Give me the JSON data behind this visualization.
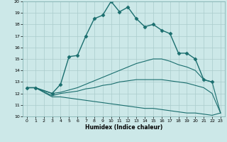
{
  "xlabel": "Humidex (Indice chaleur)",
  "bg_color": "#cce8e8",
  "grid_color": "#aacccc",
  "line_color": "#1a6e6e",
  "xlim": [
    -0.5,
    23.5
  ],
  "ylim": [
    10,
    20
  ],
  "xticks": [
    0,
    1,
    2,
    3,
    4,
    5,
    6,
    7,
    8,
    9,
    10,
    11,
    12,
    13,
    14,
    15,
    16,
    17,
    18,
    19,
    20,
    21,
    22,
    23
  ],
  "yticks": [
    10,
    11,
    12,
    13,
    14,
    15,
    16,
    17,
    18,
    19,
    20
  ],
  "series": [
    {
      "x": [
        0,
        1,
        3,
        4,
        5,
        6,
        7,
        8,
        9,
        10,
        11,
        12,
        13,
        14,
        15,
        16,
        17,
        18,
        19,
        20,
        21,
        22
      ],
      "y": [
        12.5,
        12.5,
        12.0,
        12.8,
        15.2,
        15.3,
        17.0,
        18.5,
        18.8,
        20.0,
        19.1,
        19.5,
        18.5,
        17.8,
        18.0,
        17.5,
        17.2,
        15.5,
        15.5,
        15.0,
        13.2,
        13.0
      ],
      "marker": "D",
      "markersize": 2.5,
      "linewidth": 1.0
    },
    {
      "x": [
        0,
        1,
        3,
        4,
        5,
        6,
        7,
        8,
        9,
        10,
        11,
        12,
        13,
        14,
        15,
        16,
        17,
        18,
        19,
        20,
        21,
        22,
        23
      ],
      "y": [
        12.5,
        12.5,
        12.0,
        12.1,
        12.3,
        12.5,
        12.8,
        13.1,
        13.4,
        13.7,
        14.0,
        14.3,
        14.6,
        14.8,
        15.0,
        15.0,
        14.8,
        14.5,
        14.3,
        14.0,
        13.2,
        13.0,
        10.3
      ],
      "marker": null,
      "markersize": 0,
      "linewidth": 0.8
    },
    {
      "x": [
        0,
        1,
        3,
        4,
        5,
        6,
        7,
        8,
        9,
        10,
        11,
        12,
        13,
        14,
        15,
        16,
        17,
        18,
        19,
        20,
        21,
        22,
        23
      ],
      "y": [
        12.5,
        12.5,
        11.8,
        12.0,
        12.1,
        12.2,
        12.4,
        12.5,
        12.7,
        12.8,
        13.0,
        13.1,
        13.2,
        13.2,
        13.2,
        13.2,
        13.1,
        13.0,
        12.9,
        12.7,
        12.5,
        12.0,
        10.3
      ],
      "marker": null,
      "markersize": 0,
      "linewidth": 0.8
    },
    {
      "x": [
        0,
        1,
        3,
        4,
        5,
        6,
        7,
        8,
        9,
        10,
        11,
        12,
        13,
        14,
        15,
        16,
        17,
        18,
        19,
        20,
        21,
        22,
        23
      ],
      "y": [
        12.5,
        12.5,
        11.7,
        11.7,
        11.6,
        11.5,
        11.4,
        11.3,
        11.2,
        11.1,
        11.0,
        10.9,
        10.8,
        10.7,
        10.7,
        10.6,
        10.5,
        10.4,
        10.3,
        10.3,
        10.2,
        10.1,
        10.3
      ],
      "marker": null,
      "markersize": 0,
      "linewidth": 0.8
    }
  ]
}
